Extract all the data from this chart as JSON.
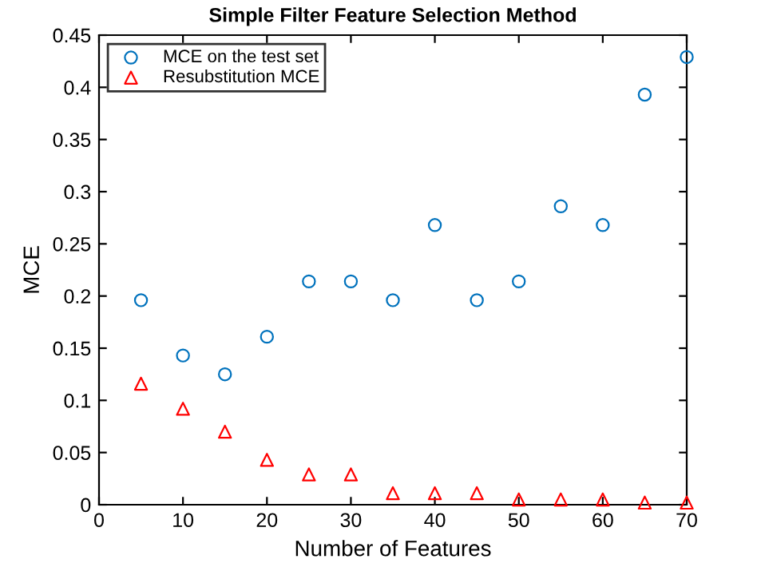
{
  "chart_data": {
    "type": "scatter",
    "title": "Simple Filter Feature Selection Method",
    "xlabel": "Number of Features",
    "ylabel": "MCE",
    "x": [
      5,
      10,
      15,
      20,
      25,
      30,
      35,
      40,
      45,
      50,
      55,
      60,
      65,
      70
    ],
    "series": [
      {
        "name": "MCE on the test set",
        "color": "#0072bd",
        "marker": "circle",
        "values": [
          0.196,
          0.143,
          0.125,
          0.161,
          0.214,
          0.214,
          0.196,
          0.268,
          0.196,
          0.214,
          0.286,
          0.268,
          0.393,
          0.429
        ]
      },
      {
        "name": "Resubstitution MCE",
        "color": "#ff0000",
        "marker": "triangle",
        "values": [
          0.116,
          0.092,
          0.07,
          0.043,
          0.029,
          0.029,
          0.011,
          0.011,
          0.011,
          0.005,
          0.005,
          0.005,
          0.002,
          0.002
        ]
      }
    ],
    "xlim": [
      0,
      70
    ],
    "ylim": [
      0,
      0.45
    ],
    "xticks": [
      0,
      10,
      20,
      30,
      40,
      50,
      60,
      70
    ],
    "yticks": [
      0,
      0.05,
      0.1,
      0.15,
      0.2,
      0.25,
      0.3,
      0.35,
      0.4,
      0.45
    ],
    "legend": "top left",
    "grid": false
  }
}
